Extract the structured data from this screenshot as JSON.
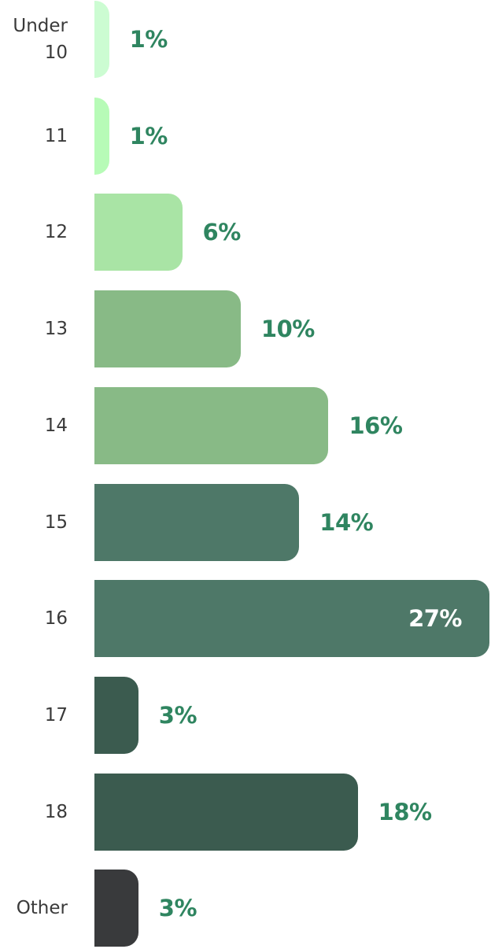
{
  "chart_data": {
    "type": "bar",
    "orientation": "horizontal",
    "categories": [
      "Under 10",
      "11",
      "12",
      "13",
      "14",
      "15",
      "16",
      "17",
      "18",
      "Other"
    ],
    "values": [
      1,
      1,
      6,
      10,
      16,
      14,
      27,
      3,
      18,
      3
    ],
    "value_labels": [
      "1%",
      "1%",
      "6%",
      "10%",
      "16%",
      "14%",
      "27%",
      "3%",
      "18%",
      "3%"
    ],
    "colors": [
      "#ccfcd2",
      "#b7fbb7",
      "#a9e4a5",
      "#88ba86",
      "#88ba86",
      "#4e7868",
      "#4e7868",
      "#3b5b4f",
      "#3b5b4f",
      "#393a3c"
    ],
    "label_color": "#2f8560",
    "unit": "%",
    "xlim": [
      0,
      27
    ],
    "grid": false,
    "title": "",
    "xlabel": "",
    "ylabel": ""
  }
}
